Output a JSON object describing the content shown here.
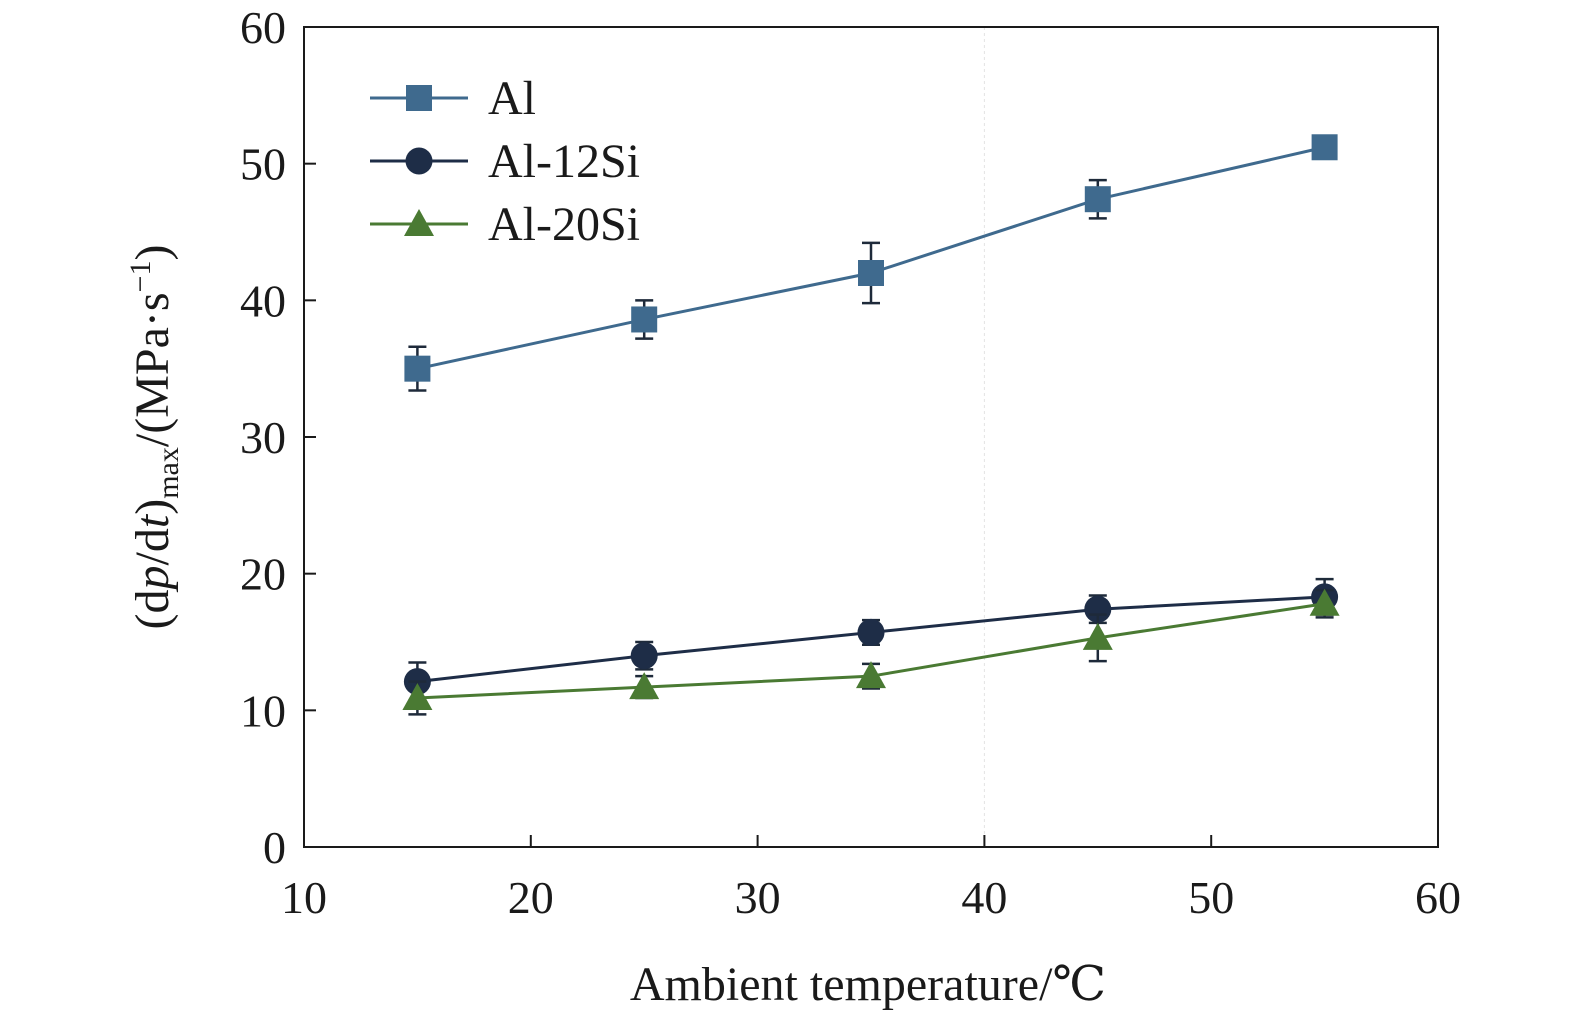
{
  "chart_data": {
    "type": "line",
    "title": "",
    "xlabel": "Ambient temperature/℃",
    "ylabel": {
      "prefix": "(d",
      "p": "p",
      "slash": "/d",
      "t": "t",
      "close": ")",
      "sub": "max",
      "unit_open": "/(MPa·s",
      "sup": "−1",
      "unit_close": ")"
    },
    "xlim": [
      10,
      60
    ],
    "ylim": [
      0,
      60
    ],
    "xticks": [
      "10",
      "20",
      "30",
      "40",
      "50",
      "60"
    ],
    "yticks": [
      "0",
      "10",
      "20",
      "30",
      "40",
      "50",
      "60"
    ],
    "x": [
      15,
      25,
      35,
      45,
      55
    ],
    "legend_position": "top-left",
    "series": [
      {
        "name": "Al",
        "marker": "square",
        "color": "#3f6a8e",
        "values": [
          35.0,
          38.6,
          42.0,
          47.4,
          51.2
        ],
        "errors": [
          1.6,
          1.4,
          2.2,
          1.4,
          0.6
        ]
      },
      {
        "name": "Al-12Si",
        "marker": "circle",
        "color": "#1e2d47",
        "values": [
          12.1,
          14.0,
          15.7,
          17.4,
          18.3
        ],
        "errors": [
          1.4,
          1.0,
          0.9,
          1.0,
          1.3
        ]
      },
      {
        "name": "Al-20Si",
        "marker": "triangle",
        "color": "#4a7a33",
        "values": [
          10.9,
          11.7,
          12.5,
          15.3,
          17.8
        ],
        "errors": [
          1.2,
          0.8,
          0.9,
          1.7,
          1.0
        ]
      }
    ]
  }
}
